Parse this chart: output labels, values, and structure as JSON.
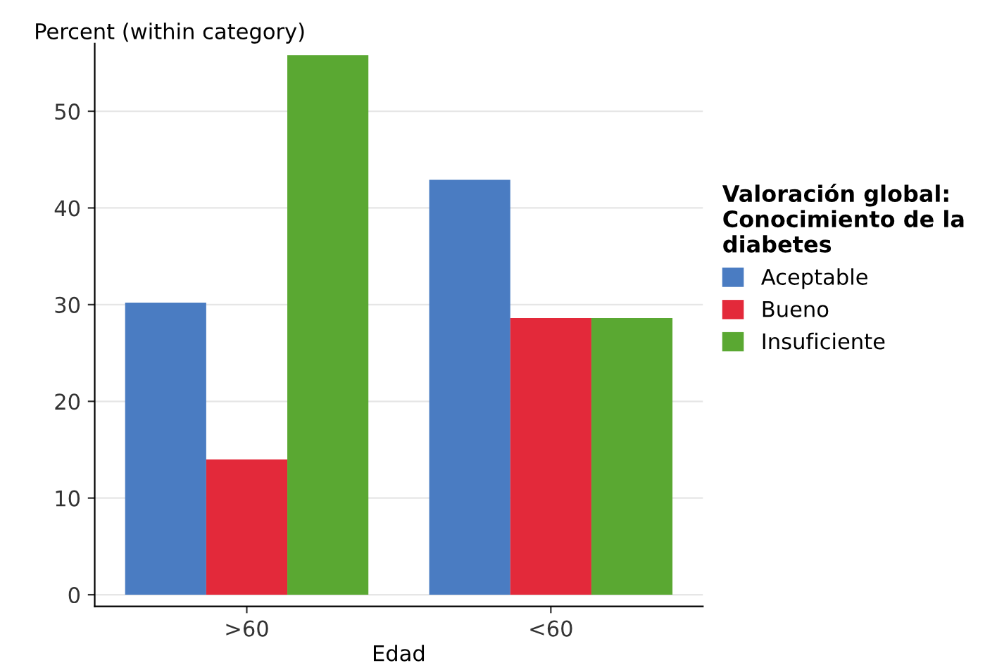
{
  "chart_data": {
    "type": "bar",
    "xlabel": "Edad",
    "ylabel": "Percent (within category)",
    "legend_title": "Valoración global:\nConocimiento de la\ndiabetes",
    "categories": [
      ">60",
      "<60"
    ],
    "series": [
      {
        "name": "Aceptable",
        "color": "#4a7cc2",
        "values": [
          30.2,
          42.9
        ]
      },
      {
        "name": "Bueno",
        "color": "#e3293a",
        "values": [
          14.0,
          28.6
        ]
      },
      {
        "name": "Insuficiente",
        "color": "#5aa832",
        "values": [
          55.8,
          28.6
        ]
      }
    ],
    "ylim": [
      -1.2,
      57
    ],
    "yticks": [
      0,
      10,
      20,
      30,
      40,
      50
    ],
    "grid": "y",
    "legend": "right"
  }
}
